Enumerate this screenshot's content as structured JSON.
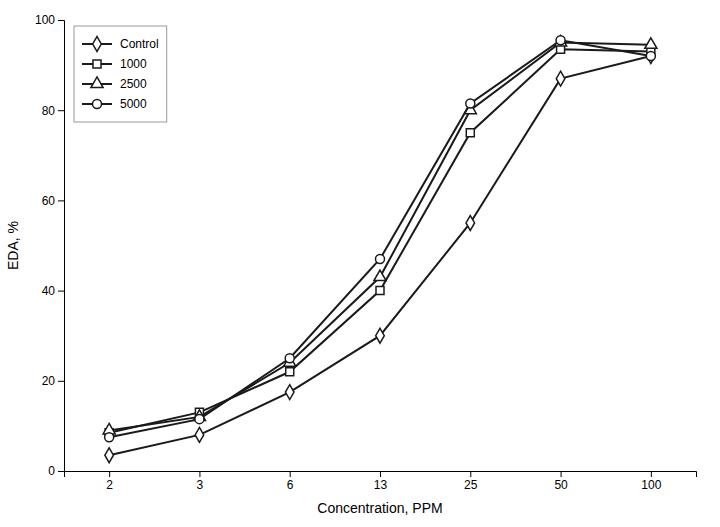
{
  "chart_data": {
    "type": "line",
    "x_label": "Concentration, PPM",
    "y_label": "EDA, %",
    "categories": [
      "2",
      "3",
      "6",
      "13",
      "25",
      "50",
      "100"
    ],
    "series": [
      {
        "name": "Control",
        "color": "#1a1a1a",
        "marker": "diamond",
        "values": [
          3.5,
          8.0,
          17.5,
          30.0,
          55.0,
          87.0,
          92.0
        ]
      },
      {
        "name": "1000",
        "color": "#1a1a1a",
        "marker": "square",
        "values": [
          8.5,
          13.0,
          22.0,
          40.0,
          75.0,
          93.5,
          93.0
        ]
      },
      {
        "name": "2500",
        "color": "#1a1a1a",
        "marker": "triangle",
        "values": [
          9.0,
          12.0,
          24.0,
          43.0,
          80.0,
          95.0,
          94.5
        ]
      },
      {
        "name": "5000",
        "color": "#1a1a1a",
        "marker": "circle",
        "values": [
          7.5,
          11.5,
          25.0,
          47.0,
          81.5,
          95.5,
          92.0
        ]
      }
    ],
    "ylim": [
      0,
      100
    ],
    "yticks": [
      0,
      20,
      40,
      60,
      80,
      100
    ],
    "grid": false,
    "legend": "upper left"
  }
}
